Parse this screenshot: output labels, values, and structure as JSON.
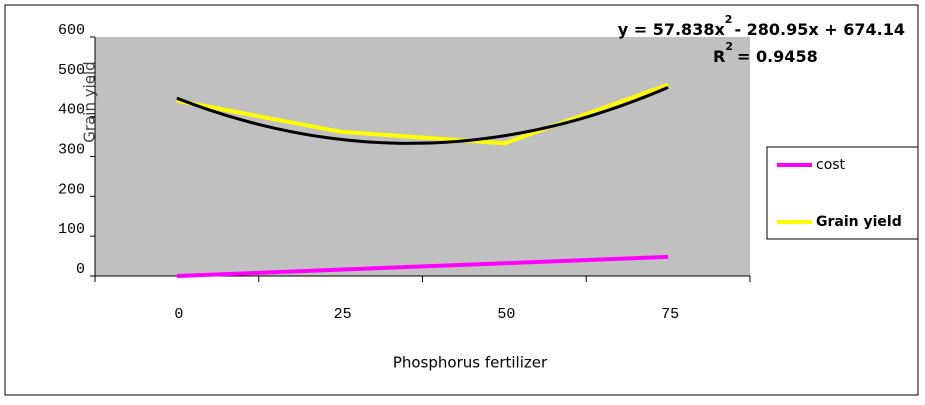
{
  "chart_data": {
    "type": "line",
    "x_label": "Phosphorus fertilizer",
    "y_label": "Grain yield",
    "categories": [
      "0",
      "25",
      "50",
      "75"
    ],
    "series": [
      {
        "name": "cost",
        "color": "#ff00ff",
        "values": [
          0,
          16,
          32,
          48
        ]
      },
      {
        "name": "Grain yield",
        "color": "#ffff00",
        "values": [
          440,
          362,
          333,
          480
        ]
      }
    ],
    "trendline": {
      "series": 1,
      "type": "polynomial",
      "color": "#000000",
      "equation": [
        "y = 57.838x",
        "2",
        "- 280.95x + 674.14"
      ],
      "r_squared": [
        "R",
        "2",
        "= 0.9458"
      ]
    },
    "ylim": [
      0,
      600
    ],
    "yticks": [
      0,
      100,
      200,
      300,
      400,
      500,
      600
    ],
    "plot_background": "#c0c0c0",
    "legend": "right"
  }
}
